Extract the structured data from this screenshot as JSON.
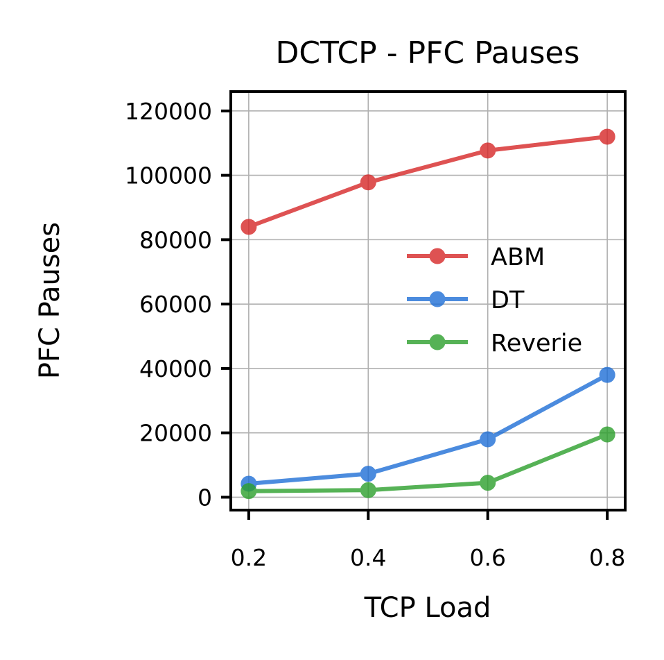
{
  "chart_data": {
    "type": "line",
    "title": "DCTCP - PFC Pauses",
    "xlabel": "TCP Load",
    "ylabel": "PFC Pauses",
    "x": [
      0.2,
      0.4,
      0.6,
      0.8
    ],
    "x_tick_labels": [
      "0.2",
      "0.4",
      "0.6",
      "0.8"
    ],
    "y_ticks": [
      0,
      20000,
      40000,
      60000,
      80000,
      100000,
      120000
    ],
    "y_tick_labels": [
      "0",
      "20000",
      "40000",
      "60000",
      "80000",
      "100000",
      "120000"
    ],
    "xlim": [
      0.17,
      0.83
    ],
    "ylim": [
      -4000,
      126000
    ],
    "grid": true,
    "legend_position": "center-right",
    "series": [
      {
        "name": "ABM",
        "color": "#d62728",
        "values": [
          84000,
          97800,
          107700,
          112000
        ]
      },
      {
        "name": "DT",
        "color": "#1f6fd6",
        "values": [
          4200,
          7300,
          18000,
          38000
        ]
      },
      {
        "name": "Reverie",
        "color": "#2ca02c",
        "values": [
          1900,
          2200,
          4500,
          19500
        ]
      }
    ]
  }
}
